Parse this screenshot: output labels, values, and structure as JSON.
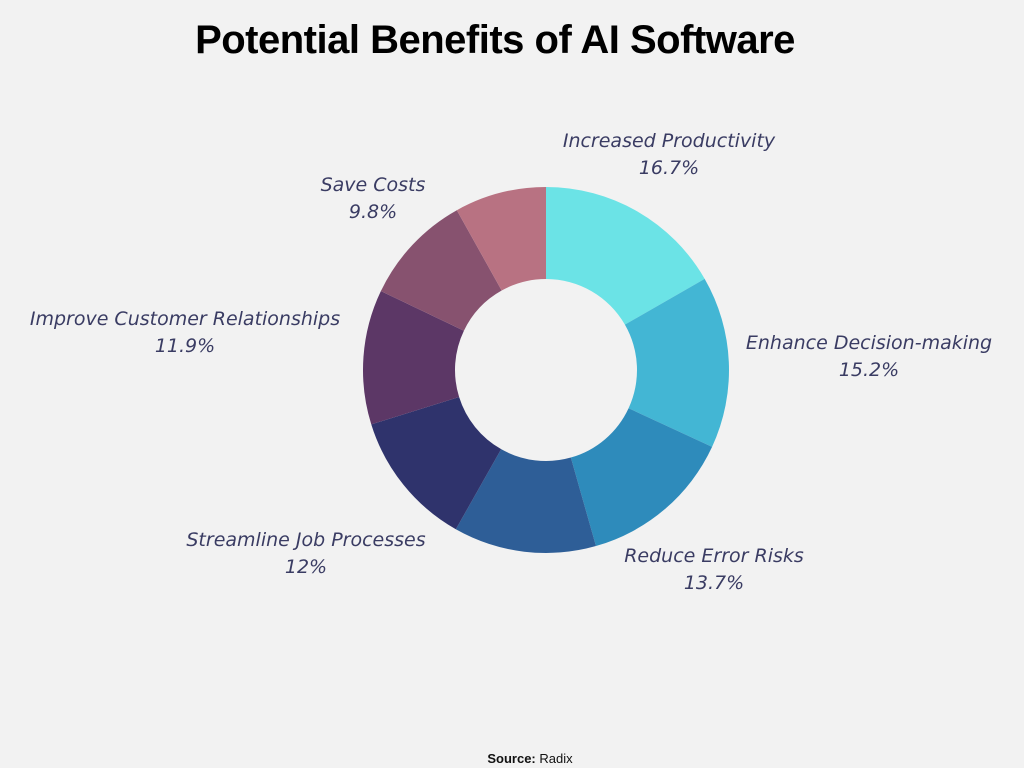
{
  "chart_data": {
    "type": "pie",
    "title": "Potential Benefits of AI Software",
    "donut": true,
    "slices": [
      {
        "label": "Increased Productivity",
        "value": 16.7,
        "display": "16.7%",
        "color": "#6be3e6"
      },
      {
        "label": "Enhance Decision-making",
        "value": 15.2,
        "display": "15.2%",
        "color": "#43b6d4"
      },
      {
        "label": "Reduce Error Risks",
        "value": 13.7,
        "display": "13.7%",
        "color": "#2e8bbb"
      },
      {
        "label": "",
        "value": 12.6,
        "display": "",
        "color": "#2e5e97"
      },
      {
        "label": "Streamline Job Processes",
        "value": 12,
        "display": "12%",
        "color": "#2f336c"
      },
      {
        "label": "Improve Customer Relationships",
        "value": 11.9,
        "display": "11.9%",
        "color": "#5c3766"
      },
      {
        "label": "Save Costs",
        "value": 9.8,
        "display": "9.8%",
        "color": "#87526f"
      },
      {
        "label": "",
        "value": 8.1,
        "display": "",
        "color": "#b87282"
      }
    ],
    "source": "Radix"
  },
  "title": "Potential Benefits of AI Software",
  "labels": {
    "increased_productivity": {
      "name": "Increased Productivity",
      "value": "16.7%"
    },
    "enhance_decision": {
      "name": "Enhance Decision-making",
      "value": "15.2%"
    },
    "reduce_error": {
      "name": "Reduce Error Risks",
      "value": "13.7%"
    },
    "streamline": {
      "name": "Streamline Job Processes",
      "value": "12%"
    },
    "customer": {
      "name": "Improve Customer Relationships",
      "value": "11.9%"
    },
    "save_costs": {
      "name": "Save Costs",
      "value": "9.8%"
    }
  },
  "source": {
    "label": "Source:",
    "value": "Radix"
  }
}
